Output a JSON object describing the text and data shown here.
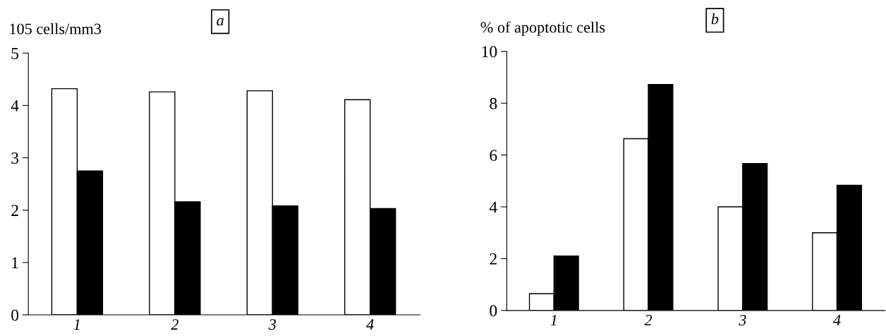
{
  "chart_data": [
    {
      "type": "bar",
      "title": "a",
      "ylabel": "105 cells/mm3",
      "categories": [
        "1",
        "2",
        "3",
        "4"
      ],
      "series": [
        {
          "color": "#ffffff",
          "values": [
            4.32,
            4.26,
            4.28,
            4.11
          ]
        },
        {
          "color": "#000000",
          "values": [
            2.75,
            2.16,
            2.08,
            2.03
          ]
        }
      ],
      "ylim": [
        0,
        5
      ],
      "yticks": [
        0,
        1,
        2,
        3,
        4,
        5
      ],
      "grid": false,
      "legend": false
    },
    {
      "type": "bar",
      "title": "b",
      "ylabel": "% of apoptotic cells",
      "categories": [
        "1",
        "2",
        "3",
        "4"
      ],
      "series": [
        {
          "color": "#ffffff",
          "values": [
            0.65,
            6.63,
            4.0,
            3.0
          ]
        },
        {
          "color": "#000000",
          "values": [
            2.1,
            8.72,
            5.67,
            4.83
          ]
        }
      ],
      "ylim": [
        0,
        10
      ],
      "yticks": [
        0,
        2,
        4,
        6,
        8,
        10
      ],
      "grid": false,
      "legend": false
    }
  ]
}
